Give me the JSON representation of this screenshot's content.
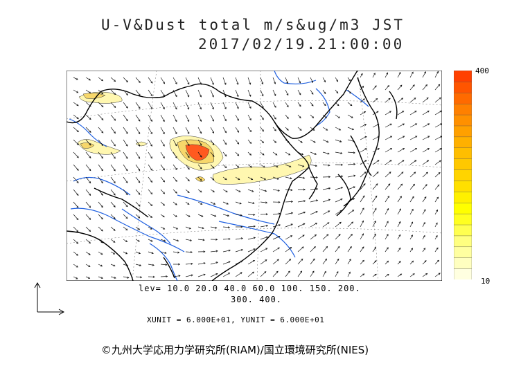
{
  "title": {
    "line1": "U-V&Dust total m/s&ug/m3 JST",
    "line2": "2017/02/19.21:00:00"
  },
  "colorbar": {
    "max_label": "400",
    "min_label": "10",
    "colors": [
      "#ffffe0",
      "#ffffc0",
      "#ffffa0",
      "#ffff80",
      "#ffff50",
      "#ffff20",
      "#ffff00",
      "#fff000",
      "#ffe000",
      "#ffd400",
      "#ffc800",
      "#ffbe00",
      "#ffb000",
      "#ffa000",
      "#ff9000",
      "#ff8000",
      "#ff6a00",
      "#ff5500",
      "#ff4000"
    ]
  },
  "levels": {
    "line1": "lev= 10.0 20.0 40.0 60.0 100. 150. 200.",
    "line2": "300. 400."
  },
  "units": "XUNIT = 6.000E+01, YUNIT = 6.000E+01",
  "copyright": "©九州大学応用力学研究所(RIAM)/国立環境研究所(NIES)",
  "map_colors": {
    "coast": "#000000",
    "river": "#1e5fe0",
    "dust_low": "#fff7b0",
    "dust_mid": "#f7d76a",
    "dust_high": "#ff5a1f",
    "vector": "#111111"
  }
}
